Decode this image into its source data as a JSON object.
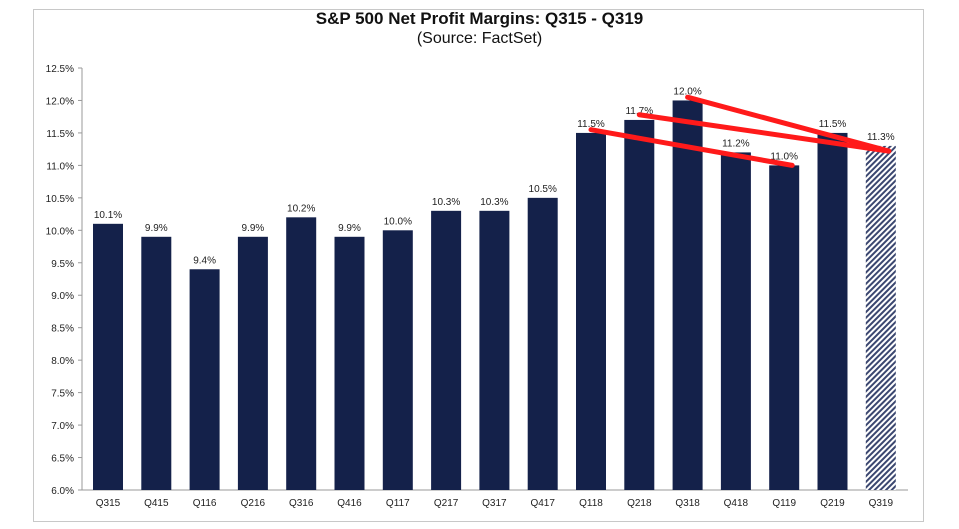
{
  "chart_data": {
    "type": "bar",
    "title": "S&P 500 Net Profit Margins: Q315 - Q319",
    "subtitle": "(Source: FactSet)",
    "categories": [
      "Q315",
      "Q415",
      "Q116",
      "Q216",
      "Q316",
      "Q416",
      "Q117",
      "Q217",
      "Q317",
      "Q417",
      "Q118",
      "Q218",
      "Q318",
      "Q418",
      "Q119",
      "Q219",
      "Q319"
    ],
    "values": [
      10.1,
      9.9,
      9.4,
      9.9,
      10.2,
      9.9,
      10.0,
      10.3,
      10.3,
      10.5,
      11.5,
      11.7,
      12.0,
      11.2,
      11.0,
      11.5,
      11.3
    ],
    "data_labels": [
      "10.1%",
      "9.9%",
      "9.4%",
      "9.9%",
      "10.2%",
      "9.9%",
      "10.0%",
      "10.3%",
      "10.3%",
      "10.5%",
      "11.5%",
      "11.7%",
      "12.0%",
      "11.2%",
      "11.0%",
      "11.5%",
      "11.3%"
    ],
    "estimate_categories": [
      "Q319"
    ],
    "ylim": [
      6.0,
      12.5
    ],
    "yticks": [
      "6.0%",
      "6.5%",
      "7.0%",
      "7.5%",
      "8.0%",
      "8.5%",
      "9.0%",
      "9.5%",
      "10.0%",
      "10.5%",
      "11.0%",
      "11.5%",
      "12.0%",
      "12.5%"
    ],
    "xlabel": "",
    "ylabel": "",
    "grid": false,
    "colors": {
      "bar": "#14214a",
      "estimate": "#8a93ad",
      "annotation": "#ff1a1a"
    },
    "annotations": [
      {
        "type": "trend-line",
        "from": [
          "Q118",
          11.55
        ],
        "to": [
          "Q119",
          11.0
        ]
      },
      {
        "type": "trend-line",
        "from": [
          "Q218",
          11.78
        ],
        "to": [
          "Q319",
          11.22
        ]
      },
      {
        "type": "trend-line",
        "from": [
          "Q318",
          12.05
        ],
        "to": [
          "Q319",
          11.22
        ]
      }
    ]
  }
}
